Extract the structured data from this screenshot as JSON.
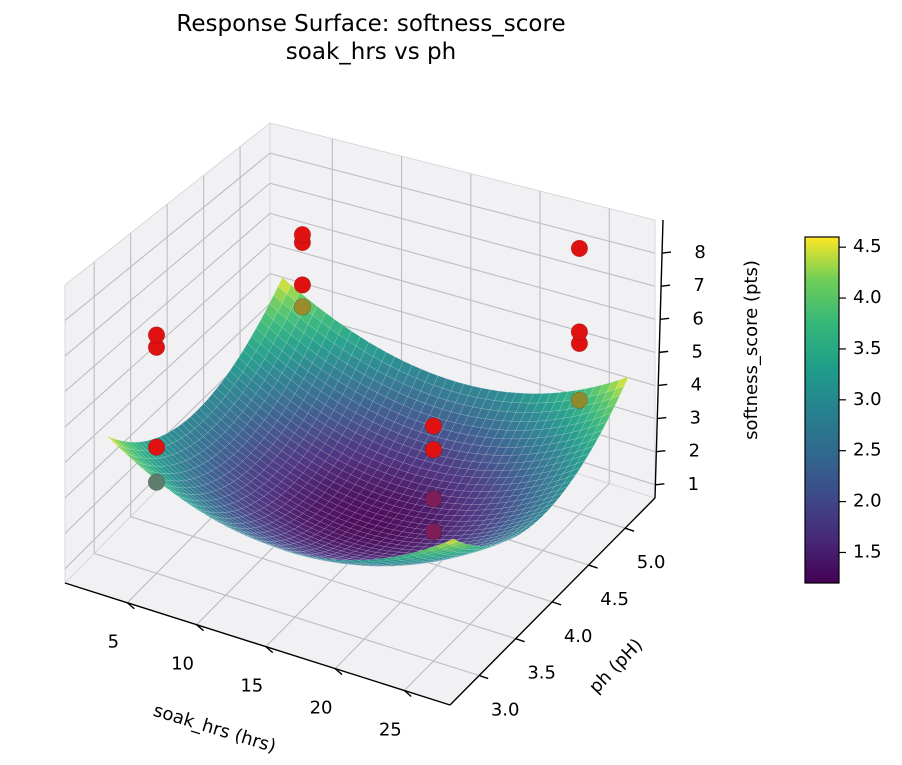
{
  "figure": {
    "title_line1": "Response Surface: softness_score",
    "title_line2": "soak_hrs vs ph"
  },
  "chart_data": {
    "type": "surface3d_with_scatter",
    "title": "Response Surface: softness_score — soak_hrs vs ph",
    "xlabel": "soak_hrs (hrs)",
    "ylabel": "ph (pH)",
    "zlabel": "softness_score (pts)",
    "xlim": [
      0.5,
      28.3
    ],
    "ylim": [
      2.6,
      5.41
    ],
    "zlim": [
      0.6,
      9.0
    ],
    "xticks": [
      "5",
      "10",
      "15",
      "20",
      "25"
    ],
    "xtick_values": [
      5,
      10,
      15,
      20,
      25
    ],
    "yticks": [
      "3.0",
      "3.5",
      "4.0",
      "4.5",
      "5.0"
    ],
    "ytick_values": [
      3.0,
      3.5,
      4.0,
      4.5,
      5.0
    ],
    "zticks": [
      "1",
      "2",
      "3",
      "4",
      "5",
      "6",
      "7",
      "8"
    ],
    "ztick_values": [
      1,
      2,
      3,
      4,
      5,
      6,
      7,
      8
    ],
    "grid": true,
    "surface": {
      "model": "z = 1.2 + 0.0109*(soak_hrs-15)^2 + 1.18*(ph-4)^2",
      "z0": 1.2,
      "xc": 15,
      "ax": 0.0109,
      "yc": 4,
      "ay": 1.18,
      "x_domain": [
        2.5,
        27.5
      ],
      "y_domain": [
        2.8,
        5.2
      ],
      "z_range_displayed": [
        1.2,
        4.6
      ],
      "grid_divisions": 40,
      "cmap": "viridis",
      "alpha": 0.95
    },
    "scatter": {
      "color": "#e01111",
      "points": [
        {
          "soak_hrs": 5,
          "ph": 5,
          "softness_score": 6.7
        },
        {
          "soak_hrs": 5,
          "ph": 5,
          "softness_score": 6.45
        },
        {
          "soak_hrs": 5,
          "ph": 5,
          "softness_score": 5.1
        },
        {
          "soak_hrs": 5,
          "ph": 5,
          "softness_score": 4.4,
          "occluded": true,
          "shade": "#9a8b2c"
        },
        {
          "soak_hrs": 5,
          "ph": 3,
          "softness_score": 7.4
        },
        {
          "soak_hrs": 5,
          "ph": 3,
          "softness_score": 7.05
        },
        {
          "soak_hrs": 5,
          "ph": 3,
          "softness_score": 4.2
        },
        {
          "soak_hrs": 5,
          "ph": 3,
          "softness_score": 3.2,
          "occluded": true,
          "shade": "#5e7d6e"
        },
        {
          "soak_hrs": 25,
          "ph": 5,
          "softness_score": 8.55
        },
        {
          "soak_hrs": 25,
          "ph": 5,
          "softness_score": 6.05
        },
        {
          "soak_hrs": 25,
          "ph": 5,
          "softness_score": 5.7
        },
        {
          "soak_hrs": 25,
          "ph": 5,
          "softness_score": 4.0,
          "occluded": true,
          "shade": "#8f8a2e"
        },
        {
          "soak_hrs": 25,
          "ph": 3,
          "softness_score": 7.05
        },
        {
          "soak_hrs": 25,
          "ph": 3,
          "softness_score": 6.4
        },
        {
          "soak_hrs": 25,
          "ph": 3,
          "softness_score": 5.05,
          "occluded": true,
          "shade": "#7e1d58"
        },
        {
          "soak_hrs": 25,
          "ph": 3,
          "softness_score": 4.15,
          "occluded": true,
          "shade": "#7e1d58"
        }
      ]
    },
    "colorbar": {
      "cmap": "viridis",
      "range": [
        1.2,
        4.6
      ],
      "ticks": [
        "1.5",
        "2.0",
        "2.5",
        "3.0",
        "3.5",
        "4.0",
        "4.5"
      ],
      "tick_values": [
        1.5,
        2.0,
        2.5,
        3.0,
        3.5,
        4.0,
        4.5
      ]
    },
    "colors": {
      "axis": "#000000",
      "grid": "#bdbdc2",
      "pane": "#f1f1f4",
      "pane_edge": "#d8d8dc",
      "background": "#ffffff"
    },
    "legend": null
  }
}
